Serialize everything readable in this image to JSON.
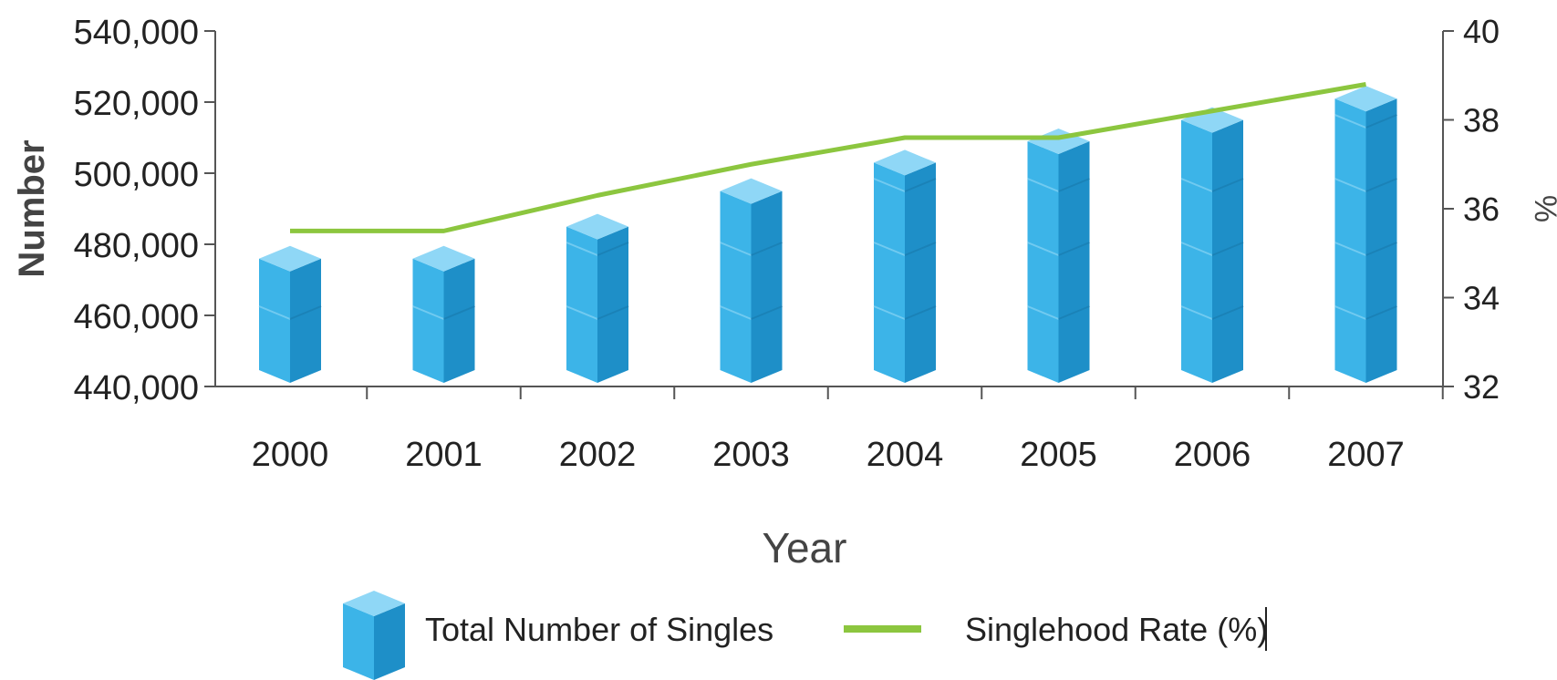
{
  "chart_data": {
    "type": "bar",
    "categories": [
      "2000",
      "2001",
      "2002",
      "2003",
      "2004",
      "2005",
      "2006",
      "2007"
    ],
    "series": [
      {
        "name": "Total Number of Singles",
        "type": "bar",
        "axis": "left",
        "values": [
          477000,
          477000,
          486000,
          496000,
          504000,
          510000,
          516000,
          522000
        ]
      },
      {
        "name": "Singlehood Rate (%)",
        "type": "line",
        "axis": "right",
        "values": [
          35.5,
          35.5,
          36.3,
          37.0,
          37.6,
          37.6,
          38.2,
          38.8
        ]
      }
    ],
    "xlabel": "Year",
    "ylabel": "Number",
    "y2label": "%",
    "ylim": [
      440000,
      540000
    ],
    "y2lim": [
      32,
      40
    ],
    "yticks": [
      "440,000",
      "460,000",
      "480,000",
      "500,000",
      "520,000",
      "540,000"
    ],
    "y2ticks": [
      "32",
      "34",
      "36",
      "38",
      "40"
    ],
    "legend_position": "bottom",
    "grid": false,
    "colors": {
      "bar_front": "#3cb4e8",
      "bar_side": "#1e8fc8",
      "bar_top": "#8fd7f6",
      "line": "#8cc63f",
      "axis": "#555555"
    }
  }
}
